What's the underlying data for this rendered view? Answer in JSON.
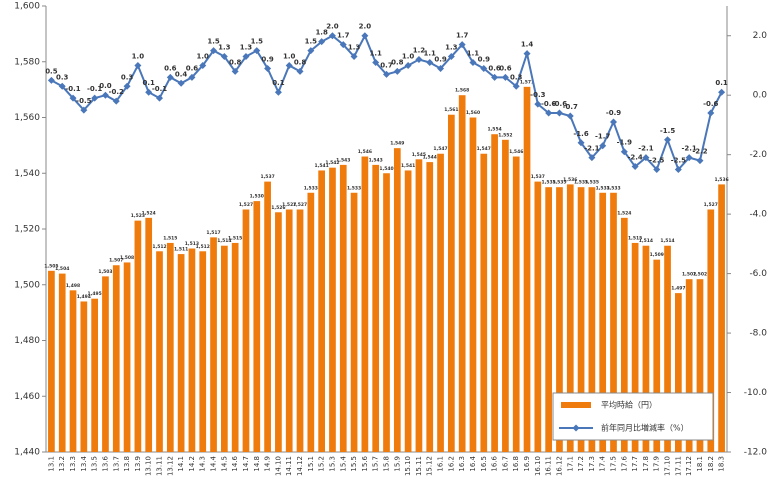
{
  "chart_data": {
    "type": "bar",
    "categories": [
      "13.1",
      "13.2",
      "13.3",
      "13.4",
      "13.5",
      "13.6",
      "13.7",
      "13.8",
      "13.9",
      "13.10",
      "13.11",
      "13.12",
      "14.1",
      "14.2",
      "14.3",
      "14.4",
      "14.5",
      "14.6",
      "14.7",
      "14.8",
      "14.9",
      "14.10",
      "14.11",
      "14.12",
      "15.1",
      "15.2",
      "15.3",
      "15.4",
      "15.5",
      "15.6",
      "15.7",
      "15.8",
      "15.9",
      "15.10",
      "15.11",
      "15.12",
      "16.1",
      "16.2",
      "16.3",
      "16.4",
      "16.5",
      "16.6",
      "16.7",
      "16.8",
      "16.9",
      "16.10",
      "16.11",
      "16.12",
      "17.1",
      "17.2",
      "17.3",
      "17.4",
      "17.5",
      "17.6",
      "17.7",
      "17.8",
      "17.9",
      "17.10",
      "17.11",
      "17.12",
      "18.1",
      "18.2",
      "18.3"
    ],
    "series": [
      {
        "name": "平均時給（円）",
        "type": "bar",
        "color": "#ee7b0c",
        "values": [
          1505,
          1504,
          1498,
          1494,
          1495,
          1503,
          1507,
          1508,
          1523,
          1524,
          1512,
          1515,
          1511,
          1513,
          1512,
          1517,
          1514,
          1515,
          1527,
          1530,
          1537,
          1526,
          1527,
          1527,
          1533,
          1541,
          1542,
          1543,
          1533,
          1546,
          1543,
          1540,
          1549,
          1541,
          1545,
          1544,
          1547,
          1561,
          1568,
          1560,
          1547,
          1554,
          1552,
          1546,
          1571,
          1537,
          1535,
          1535,
          1536,
          1535,
          1535,
          1533,
          1533,
          1524,
          1515,
          1514,
          1509,
          1514,
          1497,
          1502,
          1502,
          1527,
          1536
        ],
        "value_labels": [
          "1,505",
          "1,504",
          "1,498",
          "1,494",
          "1,495",
          "1,503",
          "1,507",
          "1,508",
          "1,523",
          "1,524",
          "1,512",
          "1,515",
          "1,511",
          "1,513",
          "1,512",
          "1,517",
          "1,514",
          "1,515",
          "1,527",
          "1,530",
          "1,537",
          "1,526",
          "1,527",
          "1,527",
          "1,533",
          "1,541",
          "1,542",
          "1,543",
          "1,533",
          "1,546",
          "1,543",
          "1,540",
          "1,549",
          "1,541",
          "1,545",
          "1,544",
          "1,547",
          "1,561",
          "1,568",
          "1,560",
          "1,547",
          "1,554",
          "1,552",
          "1,546",
          "1,571",
          "1,537",
          "1,535",
          "1,535",
          "1,536",
          "1,535",
          "1,535",
          "1,533",
          "1,533",
          "1,524",
          "1,515",
          "1,514",
          "1,509",
          "1,514",
          "1,497",
          "1,502",
          "1,502",
          "1,527",
          "1,536"
        ]
      },
      {
        "name": "前年同月比増減率（%）",
        "type": "line",
        "axis": "y2",
        "color": "#4a77b9",
        "values": [
          0.5,
          0.3,
          -0.1,
          -0.5,
          -0.1,
          0,
          -0.2,
          0.3,
          1,
          0.1,
          -0.1,
          0.6,
          0.4,
          0.6,
          1,
          1.5,
          1.3,
          0.8,
          1.3,
          1.5,
          0.9,
          0.1,
          1,
          0.8,
          1.5,
          1.8,
          2,
          1.7,
          1.3,
          2,
          1.1,
          0.7,
          0.8,
          1,
          1.2,
          1.1,
          0.9,
          1.3,
          1.7,
          1.1,
          0.9,
          0.6,
          0.6,
          0.3,
          1.4,
          -0.3,
          -0.6,
          -0.6,
          -0.7,
          -1.6,
          -2.1,
          -1.7,
          -0.9,
          -1.9,
          -2.4,
          -2.1,
          -2.5,
          -1.5,
          -2.5,
          -2.1,
          -2.2,
          -0.6,
          0.1
        ],
        "value_labels": [
          "0.5",
          "0.3",
          "-0.1",
          "-0.5",
          "-0.1",
          "0.0",
          "-0.2",
          "0.3",
          "1.0",
          "0.1",
          "-0.1",
          "0.6",
          "0.4",
          "0.6",
          "1.0",
          "1.5",
          "1.3",
          "0.8",
          "1.3",
          "1.5",
          "0.9",
          "0.1",
          "1.0",
          "0.8",
          "1.5",
          "1.8",
          "2.0",
          "1.7",
          "1.3",
          "2.0",
          "1.1",
          "0.7",
          "0.8",
          "1.0",
          "1.2",
          "1.1",
          "0.9",
          "1.3",
          "1.7",
          "1.1",
          "0.9",
          "0.6",
          "0.6",
          "0.3",
          "1.4",
          "-0.3",
          "-0.6",
          "-0.6",
          "-0.7",
          "-1.6",
          "-2.1",
          "-1.7",
          "-0.9",
          "-1.9",
          "-2.4",
          "-2.1",
          "-2.5",
          "-1.5",
          "-2.5",
          "-2.1",
          "-2.2",
          "-0.6",
          "0.1"
        ]
      }
    ],
    "ylim": [
      1440,
      1600
    ],
    "yticks": [
      {
        "value": 1440,
        "label": "1,440"
      },
      {
        "value": 1460,
        "label": "1,460"
      },
      {
        "value": 1480,
        "label": "1,480"
      },
      {
        "value": 1500,
        "label": "1,500"
      },
      {
        "value": 1520,
        "label": "1,520"
      },
      {
        "value": 1540,
        "label": "1,540"
      },
      {
        "value": 1560,
        "label": "1,560"
      },
      {
        "value": 1580,
        "label": "1,580"
      },
      {
        "value": 1600,
        "label": "1,600"
      }
    ],
    "y2lim": [
      -12,
      3
    ],
    "y2ticks": [
      {
        "value": 2,
        "label": "2.0"
      },
      {
        "value": 0,
        "label": "0.0"
      },
      {
        "value": -2,
        "label": "-2.0"
      },
      {
        "value": -4,
        "label": "-4.0"
      },
      {
        "value": -6,
        "label": "-6.0"
      },
      {
        "value": -8,
        "label": "-8.0"
      },
      {
        "value": -10,
        "label": "-10.0"
      },
      {
        "value": -12,
        "label": "-12.0"
      }
    ],
    "legend": "lower right"
  }
}
